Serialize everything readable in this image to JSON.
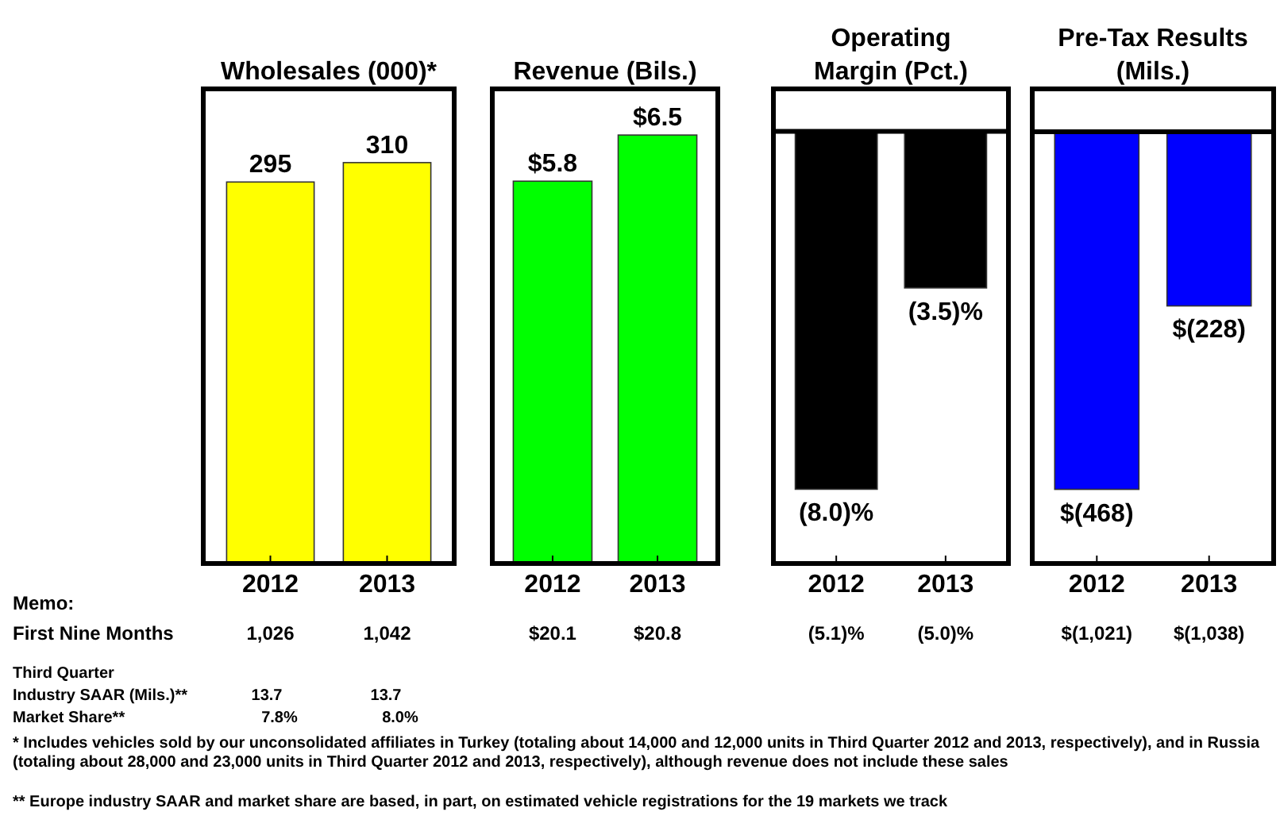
{
  "chart_data": [
    {
      "type": "bar",
      "title": "Wholesales (000)*",
      "categories": [
        "2012",
        "2013"
      ],
      "values": [
        295,
        310
      ],
      "value_labels": [
        "295",
        "310"
      ],
      "color": "#ffff00",
      "ylim": [
        0,
        367
      ],
      "tick_labels": "x",
      "annotations": [
        "Memo:",
        "First Nine Months",
        "1,026",
        "1,042",
        "Third Quarter",
        "Industry SAAR (Mils.)**",
        "13.7",
        "13.7",
        "Market Share**",
        "7.8%",
        "8.0%",
        "* Includes vehicles sold by our unconsolidated affiliates in Turkey (totaling about 14,000 and 12,000 units in Third Quarter 2012 and 2013, respectively), and in Russia (totaling about 28,000 and 23,000 units in Third Quarter 2012 and 2013, respectively), although revenue does not include these sales",
        "** Europe industry  SAAR and market share are based, in part, on estimated vehicle registrations for the 19 markets we track"
      ]
    },
    {
      "type": "bar",
      "title": "Revenue (Bils.)",
      "categories": [
        "2012",
        "2013"
      ],
      "values": [
        5.8,
        6.5
      ],
      "value_labels": [
        "$5.8",
        "$6.5"
      ],
      "color": "#00ff00",
      "ylim": [
        0,
        7.2
      ],
      "tick_labels": "x",
      "annotations": [
        "$20.1",
        "$20.8"
      ]
    },
    {
      "type": "bar",
      "title": "Operating Margin (Pct.)",
      "categories": [
        "2012",
        "2013"
      ],
      "values": [
        -8.0,
        -3.5
      ],
      "value_labels": [
        "(8.0)%",
        "(3.5)%"
      ],
      "color": "#000000",
      "ylim": [
        -9.66,
        0.95
      ],
      "tick_labels": "x",
      "annotations": [
        "(5.1)%",
        "(5.0)%"
      ]
    },
    {
      "type": "bar",
      "title": "Pre-Tax Results (Mils.)",
      "categories": [
        "2012",
        "2013"
      ],
      "values": [
        -468,
        -228
      ],
      "value_labels": [
        "$(468)",
        "$(228)"
      ],
      "color": "#0000ff",
      "ylim": [
        -565,
        56
      ],
      "tick_labels": "x",
      "annotations": [
        "$(1,021)",
        "$(1,038)"
      ]
    }
  ]
}
